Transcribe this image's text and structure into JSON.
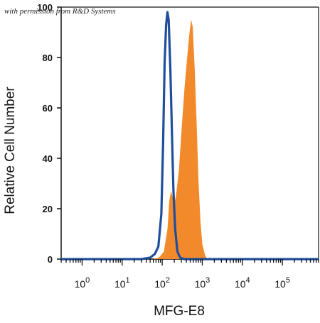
{
  "watermark": "with permission from R&D Systems",
  "chart_data": {
    "type": "area",
    "xlabel": "MFG-E8",
    "ylabel": "Relative Cell Number",
    "x_scale": "log",
    "xlim": [
      0.3,
      800000
    ],
    "ylim": [
      0,
      100
    ],
    "x_ticks": [
      {
        "value": 1,
        "base": "10",
        "exp": "0"
      },
      {
        "value": 10,
        "base": "10",
        "exp": "1"
      },
      {
        "value": 100,
        "base": "10",
        "exp": "2"
      },
      {
        "value": 1000,
        "base": "10",
        "exp": "3"
      },
      {
        "value": 10000,
        "base": "10",
        "exp": "4"
      },
      {
        "value": 100000,
        "base": "10",
        "exp": "5"
      }
    ],
    "y_ticks": [
      0,
      20,
      40,
      60,
      80,
      100
    ],
    "series": [
      {
        "kind": "filled",
        "color": "#f28a2c",
        "points": [
          [
            60,
            0
          ],
          [
            85,
            0.8
          ],
          [
            110,
            3
          ],
          [
            135,
            12
          ],
          [
            150,
            23
          ],
          [
            165,
            27
          ],
          [
            180,
            25
          ],
          [
            200,
            22
          ],
          [
            220,
            25
          ],
          [
            260,
            35
          ],
          [
            300,
            50
          ],
          [
            360,
            68
          ],
          [
            420,
            80
          ],
          [
            480,
            90
          ],
          [
            530,
            95
          ],
          [
            580,
            92
          ],
          [
            650,
            75
          ],
          [
            720,
            55
          ],
          [
            800,
            32
          ],
          [
            900,
            15
          ],
          [
            1000,
            6
          ],
          [
            1150,
            2
          ],
          [
            1300,
            0
          ]
        ]
      },
      {
        "kind": "outline",
        "color": "#1f4e9c",
        "points": [
          [
            0.3,
            0
          ],
          [
            30,
            0
          ],
          [
            50,
            0.6
          ],
          [
            65,
            2
          ],
          [
            80,
            5
          ],
          [
            95,
            18
          ],
          [
            105,
            45
          ],
          [
            115,
            78
          ],
          [
            125,
            93
          ],
          [
            135,
            98
          ],
          [
            145,
            95
          ],
          [
            160,
            75
          ],
          [
            175,
            50
          ],
          [
            190,
            28
          ],
          [
            210,
            12
          ],
          [
            240,
            3
          ],
          [
            280,
            0.6
          ],
          [
            350,
            0
          ],
          [
            800000,
            0
          ]
        ]
      }
    ]
  }
}
